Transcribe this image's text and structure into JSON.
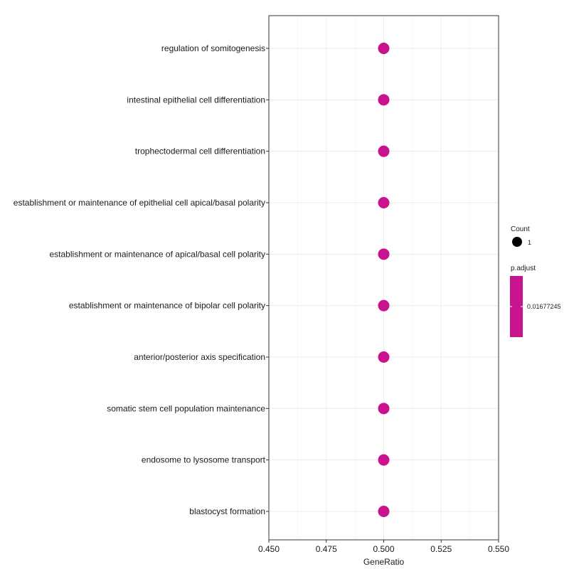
{
  "chart_data": {
    "type": "scatter",
    "xlabel": "GeneRatio",
    "ylabel": "",
    "xlim": [
      0.45,
      0.55
    ],
    "x_ticks": [
      "0.450",
      "0.475",
      "0.500",
      "0.525",
      "0.550"
    ],
    "x_tick_values": [
      0.45,
      0.475,
      0.5,
      0.525,
      0.55
    ],
    "grid": true,
    "categories": [
      "regulation of somitogenesis",
      "intestinal epithelial cell differentiation",
      "trophectodermal cell differentiation",
      "establishment or maintenance of epithelial cell apical/basal polarity",
      "establishment or maintenance of apical/basal cell polarity",
      "establishment or maintenance of bipolar cell polarity",
      "anterior/posterior axis specification",
      "somatic stem cell population maintenance",
      "endosome to lysosome transport",
      "blastocyst formation"
    ],
    "points": [
      {
        "category": "regulation of somitogenesis",
        "x": 0.5,
        "count": 1,
        "p_adjust": 0.01677245
      },
      {
        "category": "intestinal epithelial cell differentiation",
        "x": 0.5,
        "count": 1,
        "p_adjust": 0.01677245
      },
      {
        "category": "trophectodermal cell differentiation",
        "x": 0.5,
        "count": 1,
        "p_adjust": 0.01677245
      },
      {
        "category": "establishment or maintenance of epithelial cell apical/basal polarity",
        "x": 0.5,
        "count": 1,
        "p_adjust": 0.01677245
      },
      {
        "category": "establishment or maintenance of apical/basal cell polarity",
        "x": 0.5,
        "count": 1,
        "p_adjust": 0.01677245
      },
      {
        "category": "establishment or maintenance of bipolar cell polarity",
        "x": 0.5,
        "count": 1,
        "p_adjust": 0.01677245
      },
      {
        "category": "anterior/posterior axis specification",
        "x": 0.5,
        "count": 1,
        "p_adjust": 0.01677245
      },
      {
        "category": "somatic stem cell population maintenance",
        "x": 0.5,
        "count": 1,
        "p_adjust": 0.01677245
      },
      {
        "category": "endosome to lysosome transport",
        "x": 0.5,
        "count": 1,
        "p_adjust": 0.01677245
      },
      {
        "category": "blastocyst formation",
        "x": 0.5,
        "count": 1,
        "p_adjust": 0.01677245
      }
    ],
    "point_color": "#c8128e",
    "legend": {
      "placement": "right",
      "size_title": "Count",
      "size_label": "1",
      "color_title": "p.adjust",
      "color_label": "0.01677245",
      "color_bar": "#c8128e"
    }
  }
}
